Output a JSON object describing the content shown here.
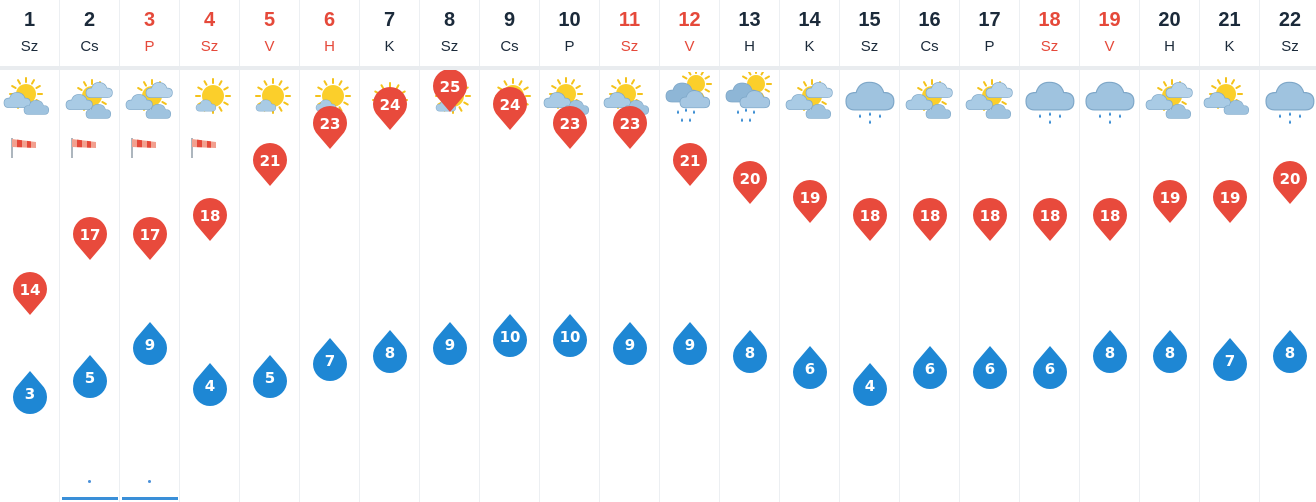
{
  "colors": {
    "weekend": "#e5493a",
    "weekday": "#1b2a3a",
    "max_temp_marker": "#e84a3c",
    "min_temp_marker": "#1e87d4"
  },
  "chart_data": {
    "type": "line",
    "x": [
      "1",
      "2",
      "3",
      "4",
      "5",
      "6",
      "7",
      "8",
      "9",
      "10",
      "11",
      "12",
      "13",
      "14",
      "15",
      "16",
      "17",
      "18",
      "19",
      "20",
      "21",
      "22"
    ],
    "series": [
      {
        "values": [
          14,
          17,
          17,
          18,
          21,
          23,
          24,
          25,
          24,
          23,
          23,
          21,
          20,
          19,
          18,
          18,
          18,
          18,
          18,
          19,
          19,
          20
        ]
      },
      {
        "values": [
          3,
          5,
          9,
          4,
          5,
          7,
          8,
          9,
          10,
          10,
          9,
          9,
          8,
          6,
          4,
          6,
          6,
          6,
          8,
          8,
          7,
          8
        ]
      }
    ]
  },
  "days": [
    {
      "num": "1",
      "abbr": "Sz",
      "weekend": false,
      "icon": "sun-behind-cloud-icon",
      "wind": true,
      "max": "14",
      "min": "3",
      "precip": false
    },
    {
      "num": "2",
      "abbr": "Cs",
      "weekend": false,
      "icon": "sun-behind-clouds-icon",
      "wind": true,
      "max": "17",
      "min": "5",
      "precip": true
    },
    {
      "num": "3",
      "abbr": "P",
      "weekend": true,
      "icon": "sun-behind-clouds-icon",
      "wind": true,
      "max": "17",
      "min": "9",
      "precip": true
    },
    {
      "num": "4",
      "abbr": "Sz",
      "weekend": true,
      "icon": "sun-small-cloud-icon",
      "wind": true,
      "max": "18",
      "min": "4",
      "precip": false
    },
    {
      "num": "5",
      "abbr": "V",
      "weekend": true,
      "icon": "sun-small-cloud-icon",
      "wind": false,
      "max": "21",
      "min": "5",
      "precip": false
    },
    {
      "num": "6",
      "abbr": "H",
      "weekend": true,
      "icon": "sun-small-cloud-icon",
      "wind": false,
      "max": "23",
      "min": "7",
      "precip": false
    },
    {
      "num": "7",
      "abbr": "K",
      "weekend": false,
      "icon": "sun-icon",
      "wind": false,
      "max": "24",
      "min": "8",
      "precip": false
    },
    {
      "num": "8",
      "abbr": "Sz",
      "weekend": false,
      "icon": "sun-small-cloud-icon",
      "wind": false,
      "max": "25",
      "min": "9",
      "precip": false
    },
    {
      "num": "9",
      "abbr": "Cs",
      "weekend": false,
      "icon": "sun-small-cloud-icon",
      "wind": false,
      "max": "24",
      "min": "10",
      "precip": false
    },
    {
      "num": "10",
      "abbr": "P",
      "weekend": false,
      "icon": "sun-behind-cloud-icon",
      "wind": false,
      "max": "23",
      "min": "10",
      "precip": false
    },
    {
      "num": "11",
      "abbr": "Sz",
      "weekend": true,
      "icon": "sun-behind-cloud-icon",
      "wind": false,
      "max": "23",
      "min": "9",
      "precip": false
    },
    {
      "num": "12",
      "abbr": "V",
      "weekend": true,
      "icon": "sun-clouds-rain-icon",
      "wind": false,
      "max": "21",
      "min": "9",
      "precip": false
    },
    {
      "num": "13",
      "abbr": "H",
      "weekend": false,
      "icon": "sun-clouds-rain-icon",
      "wind": false,
      "max": "20",
      "min": "8",
      "precip": false
    },
    {
      "num": "14",
      "abbr": "K",
      "weekend": false,
      "icon": "sun-behind-clouds-icon",
      "wind": false,
      "max": "19",
      "min": "6",
      "precip": false
    },
    {
      "num": "15",
      "abbr": "Sz",
      "weekend": false,
      "icon": "rain-cloud-icon",
      "wind": false,
      "max": "18",
      "min": "4",
      "precip": false
    },
    {
      "num": "16",
      "abbr": "Cs",
      "weekend": false,
      "icon": "sun-behind-clouds-icon",
      "wind": false,
      "max": "18",
      "min": "6",
      "precip": false
    },
    {
      "num": "17",
      "abbr": "P",
      "weekend": false,
      "icon": "sun-behind-clouds-icon",
      "wind": false,
      "max": "18",
      "min": "6",
      "precip": false
    },
    {
      "num": "18",
      "abbr": "Sz",
      "weekend": true,
      "icon": "rain-cloud-icon",
      "wind": false,
      "max": "18",
      "min": "6",
      "precip": false
    },
    {
      "num": "19",
      "abbr": "V",
      "weekend": true,
      "icon": "rain-cloud-icon",
      "wind": false,
      "max": "18",
      "min": "8",
      "precip": false
    },
    {
      "num": "20",
      "abbr": "H",
      "weekend": false,
      "icon": "sun-behind-clouds-icon",
      "wind": false,
      "max": "19",
      "min": "8",
      "precip": false
    },
    {
      "num": "21",
      "abbr": "K",
      "weekend": false,
      "icon": "sun-behind-cloud-icon",
      "wind": false,
      "max": "19",
      "min": "7",
      "precip": false
    },
    {
      "num": "22",
      "abbr": "Sz",
      "weekend": false,
      "icon": "rain-cloud-icon",
      "wind": false,
      "max": "20",
      "min": "8",
      "precip": false
    }
  ]
}
